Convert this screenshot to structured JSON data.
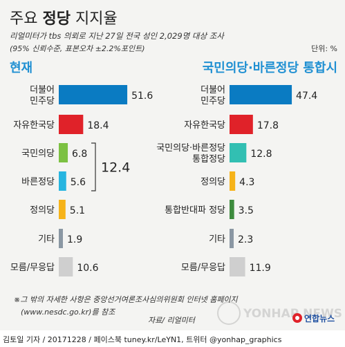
{
  "title_normal": "주요 ",
  "title_bold": "정당",
  "title_tail": " 지지율",
  "subtitle_line1": "리얼미터가 tbs 의뢰로 지난 27일 전국 성인 2,029명 대상 조사",
  "subtitle_line2": "(95% 신뢰수준, 표본오차 ±2.2%포인트)",
  "unit_label": "단위: %",
  "footnote_line1": "※그 밖의 자세한 사항은 중앙선거여론조사심의위원회 인터넷 홈페이지",
  "footnote_line2": "(www.nesdc.go.kr)를 참조",
  "source": "자료/ 리얼미터",
  "credit": "김토일 기자 / 20171228 / 페이스북 tuney.kr/LeYN1, 트위터 @yonhap_graphics",
  "brand": "연합뉴스",
  "watermark": "YONHAP NEWS",
  "colors": {
    "democratic": "#0a7bc2",
    "liberty_korea": "#e02229",
    "peoples_party": "#7cc142",
    "bareun": "#27b5e0",
    "merged": "#32bfb2",
    "justice": "#f6b319",
    "anti_merge": "#3d8b3d",
    "other": "#8a97a3",
    "none": "#cfcfcf",
    "heading": "#1e8fd2"
  },
  "chart_data": [
    {
      "type": "bar",
      "title": "현재",
      "categories": [
        "더불어\n민주당",
        "자유한국당",
        "국민의당",
        "바른정당",
        "정의당",
        "기타",
        "모름/무응답"
      ],
      "values": [
        51.6,
        18.4,
        6.8,
        5.6,
        5.1,
        1.9,
        10.6
      ],
      "value_labels": [
        "51.6",
        "18.4",
        "6.8",
        "5.6",
        "5.1",
        "1.9",
        "10.6"
      ],
      "annotation": {
        "text": "12.4",
        "note": "국민의당 + 바른정당"
      }
    },
    {
      "type": "bar",
      "title": "국민의당·바른정당 통합시",
      "categories": [
        "더불어\n민주당",
        "자유한국당",
        "국민의당·바른정당\n통합정당",
        "정의당",
        "통합반대파 정당",
        "기타",
        "모름/무응답"
      ],
      "values": [
        47.4,
        17.8,
        12.8,
        4.3,
        3.5,
        2.3,
        11.9
      ],
      "value_labels": [
        "47.4",
        "17.8",
        "12.8",
        "4.3",
        "3.5",
        "2.3",
        "11.9"
      ]
    }
  ]
}
